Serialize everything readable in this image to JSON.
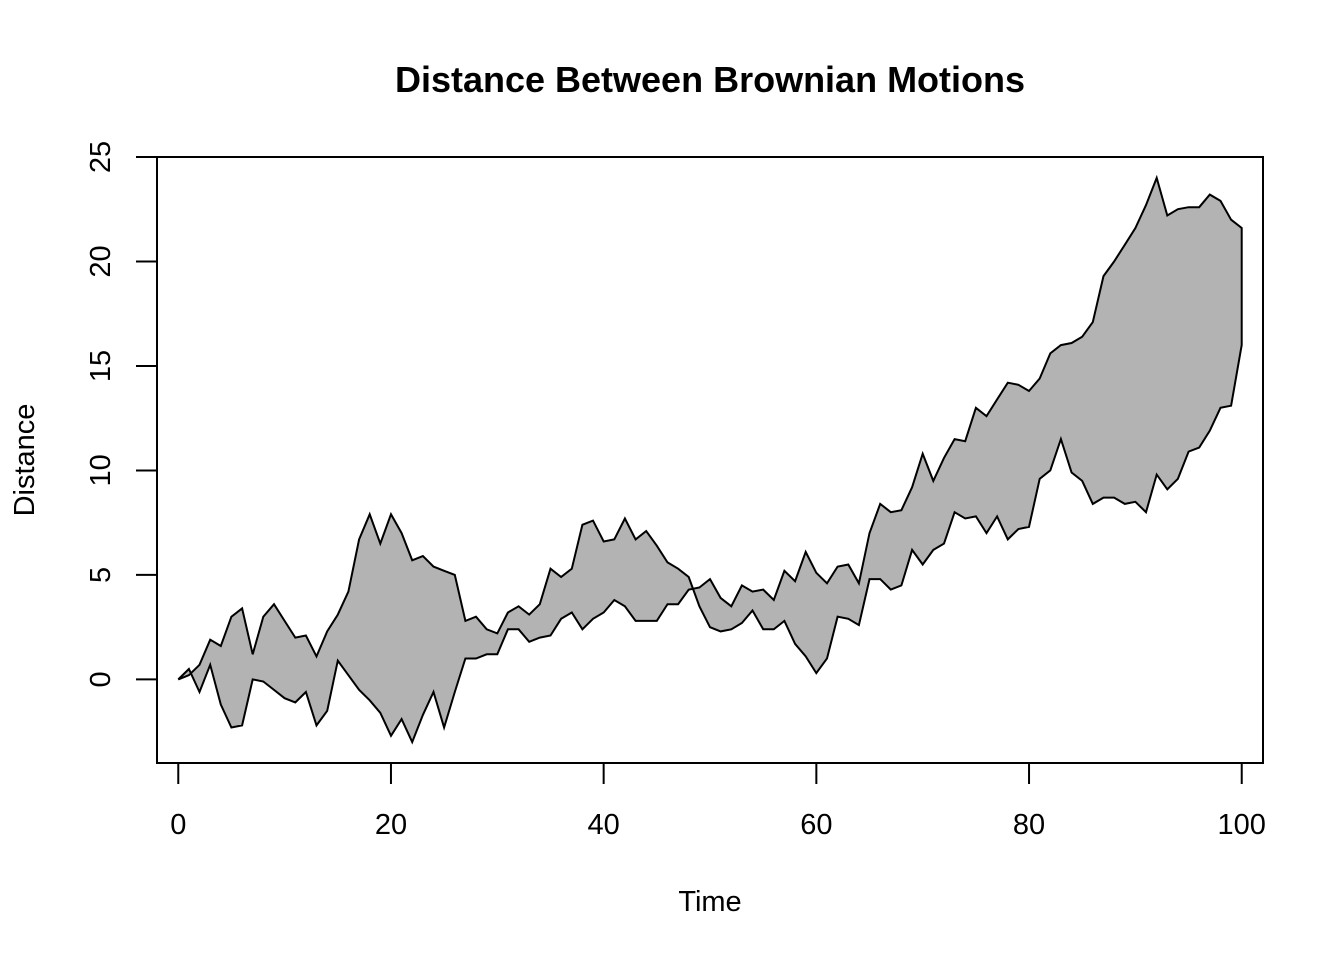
{
  "chart_data": {
    "type": "area",
    "title": "Distance Between Brownian Motions",
    "xlabel": "Time",
    "ylabel": "Distance",
    "xlim": [
      -2,
      102
    ],
    "ylim": [
      -4,
      25
    ],
    "xticks": [
      0,
      20,
      40,
      60,
      80,
      100
    ],
    "yticks": [
      0,
      5,
      10,
      15,
      20,
      25
    ],
    "grid": false,
    "legend": "none",
    "fill_color": "#b3b3b3",
    "line_color": "#000000",
    "x": [
      0,
      1,
      2,
      3,
      4,
      5,
      6,
      7,
      8,
      9,
      10,
      11,
      12,
      13,
      14,
      15,
      16,
      17,
      18,
      19,
      20,
      21,
      22,
      23,
      24,
      25,
      26,
      27,
      28,
      29,
      30,
      31,
      32,
      33,
      34,
      35,
      36,
      37,
      38,
      39,
      40,
      41,
      42,
      43,
      44,
      45,
      46,
      47,
      48,
      49,
      50,
      51,
      52,
      53,
      54,
      55,
      56,
      57,
      58,
      59,
      60,
      61,
      62,
      63,
      64,
      65,
      66,
      67,
      68,
      69,
      70,
      71,
      72,
      73,
      74,
      75,
      76,
      77,
      78,
      79,
      80,
      81,
      82,
      83,
      84,
      85,
      86,
      87,
      88,
      89,
      90,
      91,
      92,
      93,
      94,
      95,
      96,
      97,
      98,
      99,
      100
    ],
    "series": [
      {
        "values": [
          0,
          0.2,
          0.7,
          1.9,
          1.6,
          3.0,
          3.4,
          1.2,
          3.0,
          3.6,
          2.8,
          2.0,
          2.1,
          1.1,
          2.3,
          3.1,
          4.2,
          6.7,
          7.9,
          6.5,
          7.9,
          7.0,
          5.7,
          5.9,
          5.4,
          5.2,
          5.0,
          2.8,
          3.0,
          2.4,
          2.2,
          3.2,
          3.5,
          3.1,
          3.6,
          5.3,
          4.9,
          5.3,
          7.4,
          7.6,
          6.6,
          6.7,
          7.7,
          6.7,
          7.1,
          6.4,
          5.6,
          5.3,
          4.9,
          3.5,
          2.5,
          2.3,
          2.4,
          2.7,
          3.3,
          2.4,
          2.4,
          2.8,
          1.7,
          1.1,
          0.3,
          1.0,
          3.0,
          2.9,
          2.6,
          4.8,
          4.8,
          4.3,
          4.5,
          6.2,
          5.5,
          6.2,
          6.5,
          8.0,
          7.7,
          7.8,
          7.0,
          7.8,
          6.7,
          7.2,
          7.3,
          9.6,
          10.0,
          11.5,
          9.9,
          9.5,
          8.4,
          8.7,
          8.7,
          8.4,
          8.5,
          8.0,
          9.8,
          9.1,
          9.6,
          10.9,
          11.1,
          11.9,
          13.0,
          13.1,
          16.0
        ]
      },
      {
        "values": [
          0,
          0.5,
          -0.6,
          0.7,
          -1.2,
          -2.3,
          -2.2,
          0,
          -0.1,
          -0.5,
          -0.9,
          -1.1,
          -0.6,
          -2.2,
          -1.5,
          0.9,
          0.2,
          -0.5,
          -1.0,
          -1.6,
          -2.7,
          -1.9,
          -3.0,
          -1.7,
          -0.6,
          -2.3,
          -0.6,
          1.0,
          1.0,
          1.2,
          1.2,
          2.4,
          2.4,
          1.8,
          2.0,
          2.1,
          2.9,
          3.2,
          2.4,
          2.9,
          3.2,
          3.8,
          3.5,
          2.8,
          2.8,
          2.8,
          3.6,
          3.6,
          4.3,
          4.4,
          4.8,
          3.9,
          3.5,
          4.5,
          4.2,
          4.3,
          3.8,
          5.2,
          4.7,
          6.1,
          5.1,
          4.6,
          5.4,
          5.5,
          4.6,
          7.0,
          8.4,
          8.0,
          8.1,
          9.2,
          10.8,
          9.5,
          10.6,
          11.5,
          11.4,
          13.0,
          12.6,
          13.4,
          14.2,
          14.1,
          13.8,
          14.4,
          15.6,
          16.0,
          16.1,
          16.4,
          17.1,
          19.3,
          20.0,
          20.8,
          21.6,
          22.7,
          24.0,
          22.2,
          22.5,
          22.6,
          22.6,
          23.2,
          22.9,
          22.0,
          21.6
        ]
      }
    ]
  }
}
